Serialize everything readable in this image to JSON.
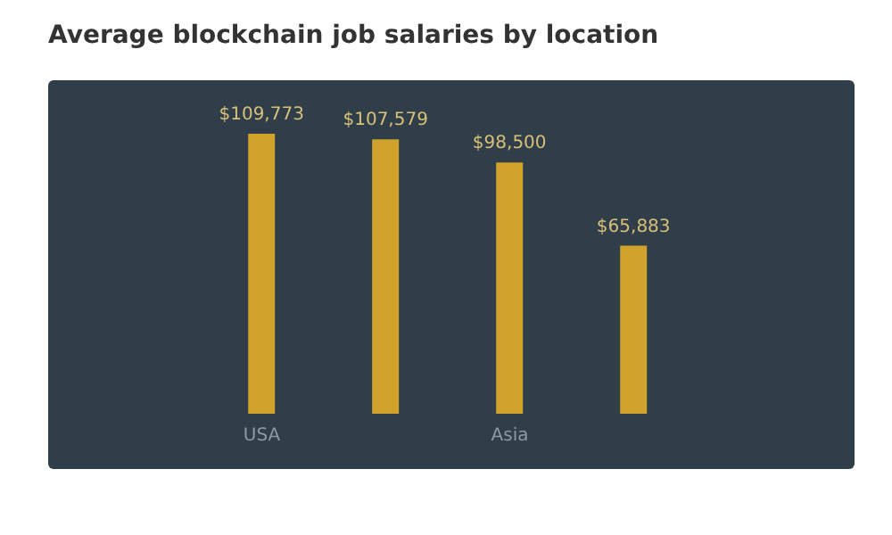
{
  "chart_data": {
    "type": "bar",
    "title": "Average blockchain job salaries by location",
    "categories": [
      "USA",
      null,
      "Asia",
      null
    ],
    "values": [
      109773,
      107579,
      98500,
      65883
    ],
    "color": "#d1a22c",
    "value_labels": [
      "$109,773",
      "$107,579",
      "$98,500",
      "$65,883"
    ],
    "grid": false,
    "legend": false
  }
}
